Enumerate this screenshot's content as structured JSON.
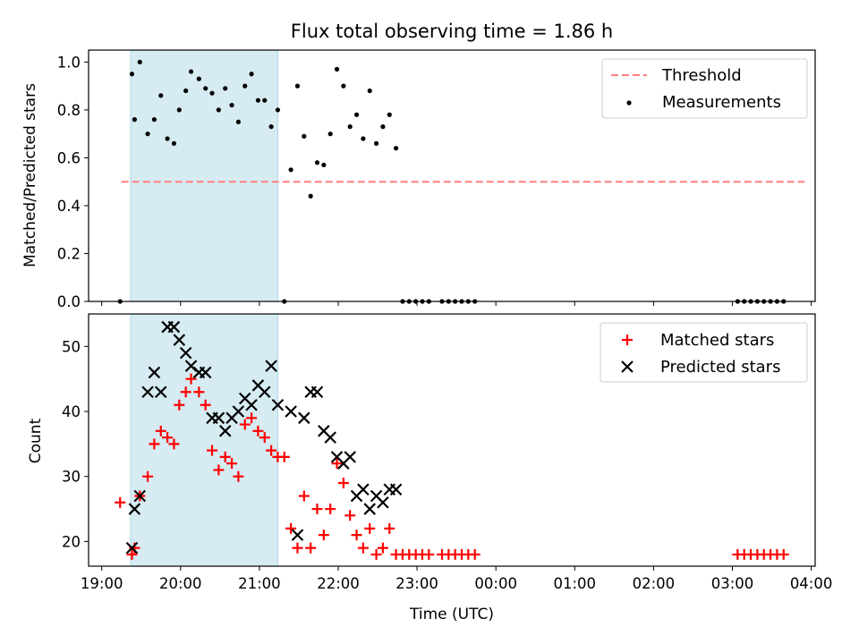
{
  "chart_data": [
    {
      "type": "scatter",
      "title": "Flux total observing time = 1.86 h",
      "xlabel": "",
      "ylabel": "Matched/Predicted stars",
      "xlim": [
        "18:50",
        "04:03"
      ],
      "ylim": [
        0,
        1.05
      ],
      "yticks": [
        "0.0",
        "0.2",
        "0.4",
        "0.6",
        "0.8",
        "1.0"
      ],
      "shaded_interval": [
        "19:22",
        "21:14"
      ],
      "threshold": {
        "label": "Threshold",
        "value": 0.5,
        "x_range": [
          "19:15",
          "03:55"
        ],
        "color": "#ff7f7f"
      },
      "legend": {
        "position": "top-right",
        "entries": [
          "Threshold",
          "Measurements"
        ]
      },
      "series": [
        {
          "name": "Measurements",
          "color": "#000000",
          "points": [
            [
              "19:14",
              0.0
            ],
            [
              "19:23",
              0.95
            ],
            [
              "19:25",
              0.76
            ],
            [
              "19:29",
              1.0
            ],
            [
              "19:35",
              0.7
            ],
            [
              "19:40",
              0.76
            ],
            [
              "19:45",
              0.86
            ],
            [
              "19:50",
              0.68
            ],
            [
              "19:55",
              0.66
            ],
            [
              "19:59",
              0.8
            ],
            [
              "20:04",
              0.88
            ],
            [
              "20:08",
              0.96
            ],
            [
              "20:14",
              0.93
            ],
            [
              "20:19",
              0.89
            ],
            [
              "20:24",
              0.87
            ],
            [
              "20:29",
              0.8
            ],
            [
              "20:34",
              0.89
            ],
            [
              "20:39",
              0.82
            ],
            [
              "20:44",
              0.75
            ],
            [
              "20:49",
              0.9
            ],
            [
              "20:54",
              0.95
            ],
            [
              "20:59",
              0.84
            ],
            [
              "21:04",
              0.84
            ],
            [
              "21:09",
              0.73
            ],
            [
              "21:14",
              0.8
            ],
            [
              "21:19",
              0.0
            ],
            [
              "21:24",
              0.55
            ],
            [
              "21:29",
              0.9
            ],
            [
              "21:34",
              0.69
            ],
            [
              "21:39",
              0.44
            ],
            [
              "21:44",
              0.58
            ],
            [
              "21:49",
              0.57
            ],
            [
              "21:54",
              0.7
            ],
            [
              "21:59",
              0.97
            ],
            [
              "22:04",
              0.9
            ],
            [
              "22:09",
              0.73
            ],
            [
              "22:14",
              0.78
            ],
            [
              "22:19",
              0.68
            ],
            [
              "22:24",
              0.88
            ],
            [
              "22:29",
              0.66
            ],
            [
              "22:34",
              0.73
            ],
            [
              "22:39",
              0.78
            ],
            [
              "22:44",
              0.64
            ],
            [
              "22:49",
              0.0
            ],
            [
              "22:54",
              0.0
            ],
            [
              "22:59",
              0.0
            ],
            [
              "23:04",
              0.0
            ],
            [
              "23:09",
              0.0
            ],
            [
              "23:19",
              0.0
            ],
            [
              "23:24",
              0.0
            ],
            [
              "23:29",
              0.0
            ],
            [
              "23:34",
              0.0
            ],
            [
              "23:39",
              0.0
            ],
            [
              "23:44",
              0.0
            ],
            [
              "03:04",
              0.0
            ],
            [
              "03:09",
              0.0
            ],
            [
              "03:14",
              0.0
            ],
            [
              "03:19",
              0.0
            ],
            [
              "03:24",
              0.0
            ],
            [
              "03:29",
              0.0
            ],
            [
              "03:34",
              0.0
            ],
            [
              "03:39",
              0.0
            ]
          ]
        }
      ]
    },
    {
      "type": "scatter",
      "title": "",
      "xlabel": "Time (UTC)",
      "ylabel": "Count",
      "xlim": [
        "18:50",
        "04:03"
      ],
      "ylim": [
        16.2,
        55
      ],
      "yticks": [
        "20",
        "30",
        "40",
        "50"
      ],
      "xticks": [
        "19:00",
        "20:00",
        "21:00",
        "22:00",
        "23:00",
        "00:00",
        "01:00",
        "02:00",
        "03:00",
        "04:00"
      ],
      "shaded_interval": [
        "19:22",
        "21:14"
      ],
      "legend": {
        "position": "top-right",
        "entries": [
          "Matched stars",
          "Predicted stars"
        ]
      },
      "series": [
        {
          "name": "Matched stars",
          "color": "#ff0000",
          "points": [
            [
              "19:14",
              26
            ],
            [
              "19:23",
              18
            ],
            [
              "19:25",
              19
            ],
            [
              "19:29",
              27
            ],
            [
              "19:35",
              30
            ],
            [
              "19:40",
              35
            ],
            [
              "19:45",
              37
            ],
            [
              "19:50",
              36
            ],
            [
              "19:55",
              35
            ],
            [
              "19:59",
              41
            ],
            [
              "20:04",
              43
            ],
            [
              "20:08",
              45
            ],
            [
              "20:14",
              43
            ],
            [
              "20:19",
              41
            ],
            [
              "20:24",
              34
            ],
            [
              "20:29",
              31
            ],
            [
              "20:34",
              33
            ],
            [
              "20:39",
              32
            ],
            [
              "20:44",
              30
            ],
            [
              "20:49",
              38
            ],
            [
              "20:54",
              39
            ],
            [
              "20:59",
              37
            ],
            [
              "21:04",
              36
            ],
            [
              "21:09",
              34
            ],
            [
              "21:14",
              33
            ],
            [
              "21:19",
              33
            ],
            [
              "21:24",
              22
            ],
            [
              "21:29",
              19
            ],
            [
              "21:34",
              27
            ],
            [
              "21:39",
              19
            ],
            [
              "21:44",
              25
            ],
            [
              "21:49",
              21
            ],
            [
              "21:54",
              25
            ],
            [
              "21:59",
              32
            ],
            [
              "22:04",
              29
            ],
            [
              "22:09",
              24
            ],
            [
              "22:14",
              21
            ],
            [
              "22:19",
              19
            ],
            [
              "22:24",
              22
            ],
            [
              "22:29",
              18
            ],
            [
              "22:34",
              19
            ],
            [
              "22:39",
              22
            ],
            [
              "22:44",
              18
            ],
            [
              "22:49",
              18
            ],
            [
              "22:54",
              18
            ],
            [
              "22:59",
              18
            ],
            [
              "23:04",
              18
            ],
            [
              "23:09",
              18
            ],
            [
              "23:19",
              18
            ],
            [
              "23:24",
              18
            ],
            [
              "23:29",
              18
            ],
            [
              "23:34",
              18
            ],
            [
              "23:39",
              18
            ],
            [
              "23:44",
              18
            ],
            [
              "03:04",
              18
            ],
            [
              "03:09",
              18
            ],
            [
              "03:14",
              18
            ],
            [
              "03:19",
              18
            ],
            [
              "03:24",
              18
            ],
            [
              "03:29",
              18
            ],
            [
              "03:34",
              18
            ],
            [
              "03:39",
              18
            ]
          ]
        },
        {
          "name": "Predicted stars",
          "color": "#000000",
          "points": [
            [
              "19:23",
              19
            ],
            [
              "19:25",
              25
            ],
            [
              "19:29",
              27
            ],
            [
              "19:35",
              43
            ],
            [
              "19:40",
              46
            ],
            [
              "19:45",
              43
            ],
            [
              "19:50",
              53
            ],
            [
              "19:55",
              53
            ],
            [
              "19:59",
              51
            ],
            [
              "20:04",
              49
            ],
            [
              "20:08",
              47
            ],
            [
              "20:14",
              46
            ],
            [
              "20:19",
              46
            ],
            [
              "20:24",
              39
            ],
            [
              "20:29",
              39
            ],
            [
              "20:34",
              37
            ],
            [
              "20:39",
              39
            ],
            [
              "20:44",
              40
            ],
            [
              "20:49",
              42
            ],
            [
              "20:54",
              41
            ],
            [
              "20:59",
              44
            ],
            [
              "21:04",
              43
            ],
            [
              "21:09",
              47
            ],
            [
              "21:14",
              41
            ],
            [
              "21:24",
              40
            ],
            [
              "21:29",
              21
            ],
            [
              "21:34",
              39
            ],
            [
              "21:39",
              43
            ],
            [
              "21:44",
              43
            ],
            [
              "21:49",
              37
            ],
            [
              "21:54",
              36
            ],
            [
              "21:59",
              33
            ],
            [
              "22:04",
              32
            ],
            [
              "22:09",
              33
            ],
            [
              "22:14",
              27
            ],
            [
              "22:19",
              28
            ],
            [
              "22:24",
              25
            ],
            [
              "22:29",
              27
            ],
            [
              "22:34",
              26
            ],
            [
              "22:39",
              28
            ],
            [
              "22:44",
              28
            ]
          ]
        }
      ]
    }
  ]
}
